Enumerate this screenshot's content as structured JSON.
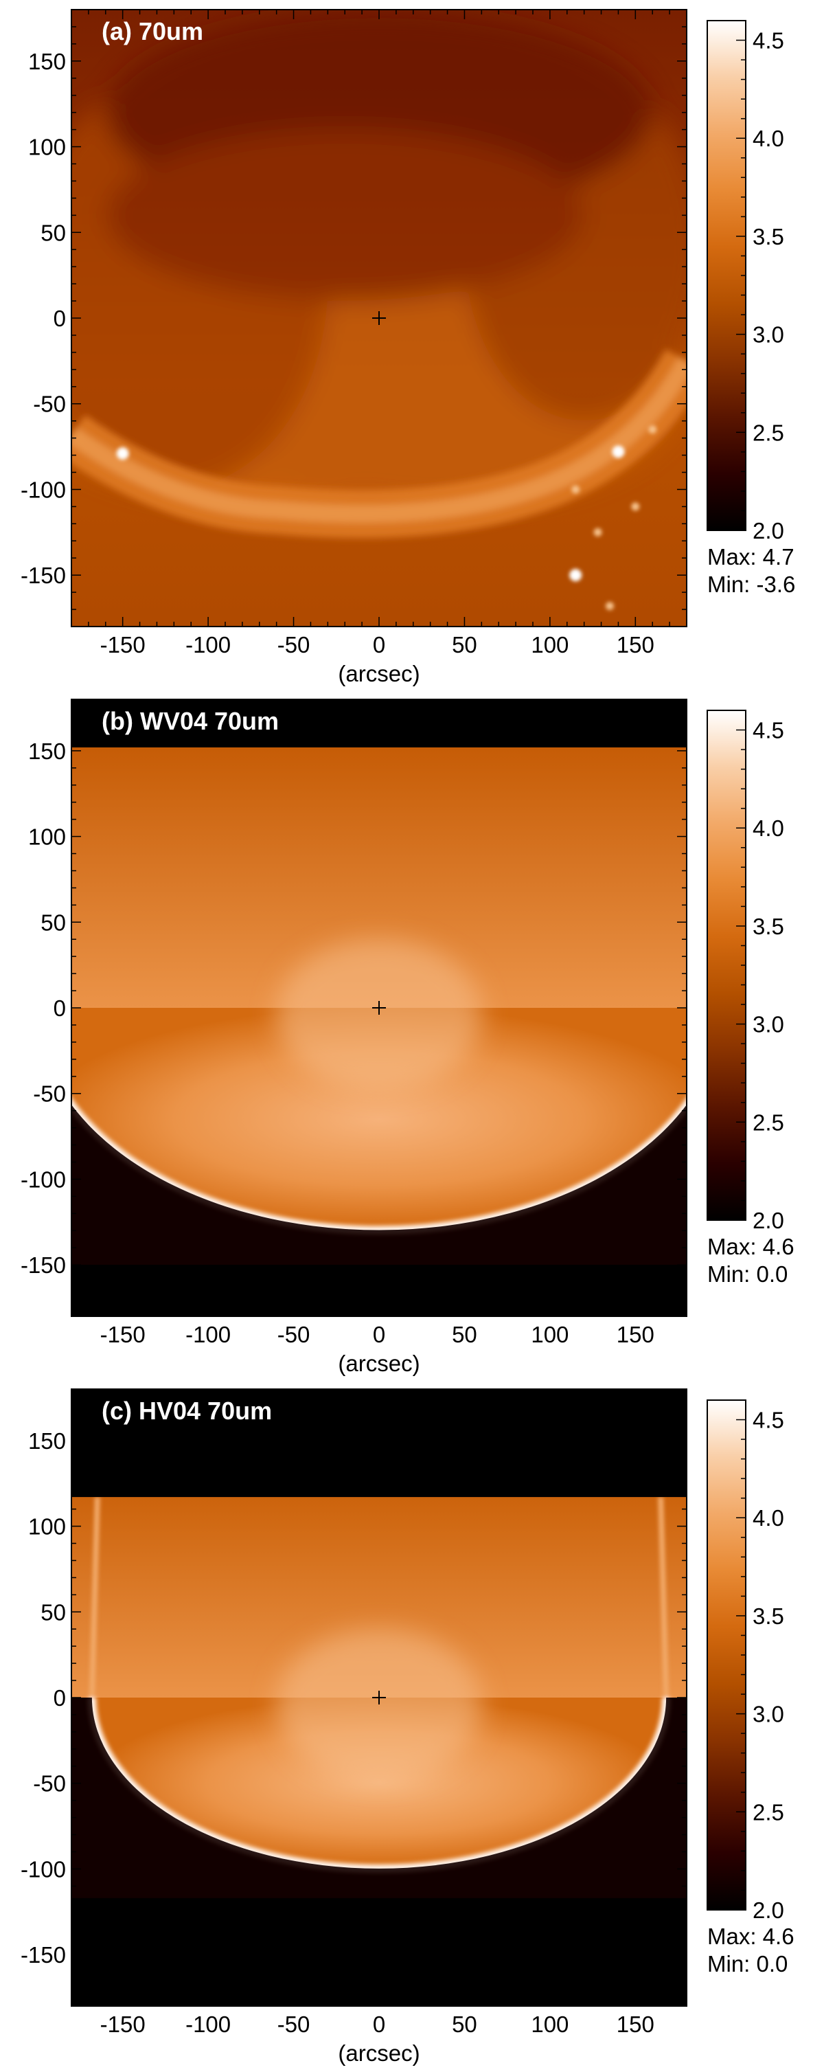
{
  "figure": {
    "colormap": [
      "#000000",
      "#2a0000",
      "#5a1500",
      "#8a3300",
      "#b35000",
      "#d46a10",
      "#e88a35",
      "#f2a968",
      "#f9cfa8",
      "#ffffff"
    ]
  },
  "chart_data": [
    {
      "type": "heatmap",
      "panel_label": "(a) 70um",
      "xlabel": "(arcsec)",
      "xlim": [
        -180,
        180
      ],
      "ylim": [
        -180,
        180
      ],
      "xticks": [
        -150,
        -100,
        -50,
        0,
        50,
        100,
        150
      ],
      "yticks": [
        -150,
        -100,
        -50,
        0,
        50,
        100,
        150
      ],
      "colorbar": {
        "ticks": [
          "2.0",
          "2.5",
          "3.0",
          "3.5",
          "4.0",
          "4.5"
        ],
        "range": [
          2.0,
          4.6
        ]
      },
      "max_text": "Max: 4.7",
      "min_text": "Min: -3.6",
      "center_marker": [
        0,
        0
      ],
      "point_sources": [
        [
          -150,
          -79
        ],
        [
          140,
          -78
        ],
        [
          115,
          -150
        ],
        [
          128,
          -125
        ],
        [
          115,
          -100
        ],
        [
          135,
          -168
        ],
        [
          160,
          -65
        ],
        [
          150,
          -110
        ]
      ]
    },
    {
      "type": "heatmap",
      "panel_label": "(b) WV04 70um",
      "xlabel": "(arcsec)",
      "xlim": [
        -180,
        180
      ],
      "ylim": [
        -180,
        180
      ],
      "data_y_range": [
        -150,
        152
      ],
      "xticks": [
        -150,
        -100,
        -50,
        0,
        50,
        100,
        150
      ],
      "yticks": [
        -150,
        -100,
        -50,
        0,
        50,
        100,
        150
      ],
      "colorbar": {
        "ticks": [
          "2.0",
          "2.5",
          "3.0",
          "3.5",
          "4.0",
          "4.5"
        ],
        "range": [
          2.0,
          4.6
        ]
      },
      "max_text": "Max: 4.6",
      "min_text": "Min: 0.0",
      "center_marker": [
        0,
        0
      ],
      "limb_radius": 130
    },
    {
      "type": "heatmap",
      "panel_label": "(c) HV04 70um",
      "xlabel": "(arcsec)",
      "xlim": [
        -180,
        180
      ],
      "ylim": [
        -180,
        180
      ],
      "data_y_range": [
        -117,
        117
      ],
      "xticks": [
        -150,
        -100,
        -50,
        0,
        50,
        100,
        150
      ],
      "yticks": [
        -150,
        -100,
        -50,
        0,
        50,
        100,
        150
      ],
      "colorbar": {
        "ticks": [
          "2.0",
          "2.5",
          "3.0",
          "3.5",
          "4.0",
          "4.5"
        ],
        "range": [
          2.0,
          4.6
        ]
      },
      "max_text": "Max: 4.6",
      "min_text": "Min: 0.0",
      "center_marker": [
        0,
        0
      ],
      "limb_radius": 168,
      "limb_y_radius": 100
    }
  ]
}
